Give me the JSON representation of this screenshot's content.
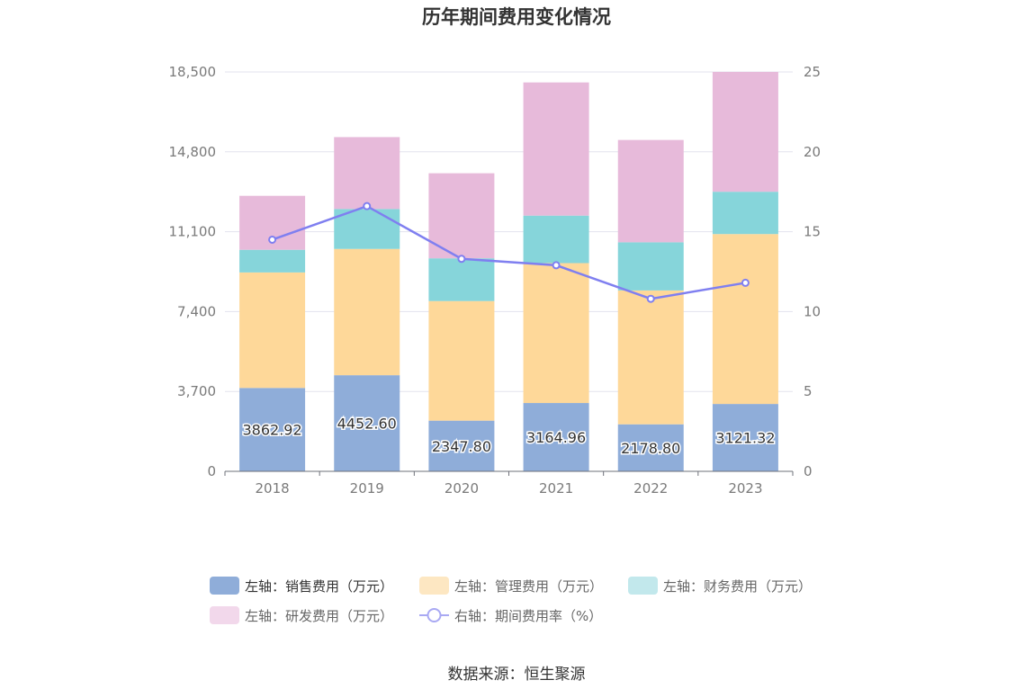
{
  "chart_data": {
    "type": "bar",
    "stacked": true,
    "title": "历年期间费用变化情况",
    "categories": [
      "2018",
      "2019",
      "2020",
      "2021",
      "2022",
      "2023"
    ],
    "y_left": {
      "ticks": [
        0,
        3700,
        7400,
        11100,
        14800,
        18500
      ],
      "tick_labels": [
        "0",
        "3,700",
        "7,400",
        "11,100",
        "14,800",
        "18,500"
      ],
      "ylim": [
        0,
        18500
      ]
    },
    "y_right": {
      "ticks": [
        0,
        5,
        10,
        15,
        20,
        25
      ],
      "tick_labels": [
        "0",
        "5",
        "10",
        "15",
        "20",
        "25"
      ],
      "ylim": [
        0,
        25
      ]
    },
    "series": [
      {
        "name": "左轴：销售费用（万元）",
        "axis": "left",
        "type": "bar",
        "color": "#8fadd9",
        "values": [
          3862.92,
          4452.6,
          2347.8,
          3164.96,
          2178.8,
          3121.32
        ],
        "labels": [
          "3862.92",
          "4452.60",
          "2347.80",
          "3164.96",
          "2178.80",
          "3121.32"
        ]
      },
      {
        "name": "左轴：管理费用（万元）",
        "axis": "left",
        "type": "bar",
        "color": "#fed899",
        "values": [
          5350,
          5850,
          5540,
          6480,
          6200,
          7870
        ]
      },
      {
        "name": "左轴：财务费用（万元）",
        "axis": "left",
        "type": "bar",
        "color": "#86d5da",
        "values": [
          1050,
          1850,
          1980,
          2200,
          2230,
          1960
        ]
      },
      {
        "name": "左轴：研发费用（万元）",
        "axis": "left",
        "type": "bar",
        "color": "#e7bada",
        "values": [
          2500,
          3330,
          3940,
          6170,
          4740,
          5550
        ]
      },
      {
        "name": "右轴：期间费用率（%）",
        "axis": "right",
        "type": "line",
        "color": "#7f7ff0",
        "values": [
          14.5,
          16.6,
          13.3,
          12.9,
          10.8,
          11.8
        ]
      }
    ],
    "legend": [
      {
        "label": "左轴：销售费用（万元）",
        "color": "#8fadd9",
        "kind": "rect",
        "active": true
      },
      {
        "label": "左轴：管理费用（万元）",
        "color": "#fde7c2",
        "kind": "rect",
        "active": false
      },
      {
        "label": "左轴：财务费用（万元）",
        "color": "#c2e8ec",
        "kind": "rect",
        "active": false
      },
      {
        "label": "左轴：研发费用（万元）",
        "color": "#f2d8eb",
        "kind": "rect",
        "active": false
      },
      {
        "label": "右轴：期间费用率（%）",
        "color": "#a9a9f3",
        "kind": "line",
        "active": false
      }
    ],
    "legend_position": "bottom-center"
  },
  "source_text": "数据来源：恒生聚源"
}
